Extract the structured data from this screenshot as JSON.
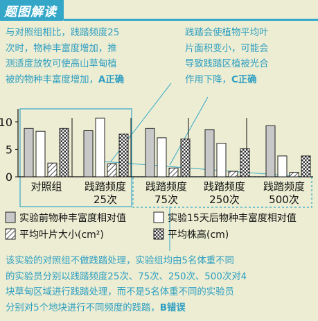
{
  "header": {
    "title": "题图解读"
  },
  "notes": {
    "left_lines": [
      "与对照组相比，践踏频度25",
      "次时，物种丰富度增加，推",
      "测适度放牧可使高山草甸植"
    ],
    "left_last": "被的物种丰富度增加，",
    "left_verdict": "A正确",
    "right_lines": [
      "践踏会使植物平均叶",
      "片面积变小，可能会",
      "导致践踏区植被光合"
    ],
    "right_last": "作用下降，",
    "right_verdict": "C正确",
    "bottom_lines": [
      "该实验的对照组不做践踏处理，实验组均由5名体重不同",
      "的实验员分别以践踏频度25次、75次、250次、500次对4",
      "块草甸区域进行践踏处理，而不是5名体重不同的实验员"
    ],
    "bottom_last": "分别对5个地块进行不同频度的践踏，",
    "bottom_verdict": "B错误"
  },
  "chart_data": {
    "type": "bar",
    "ylim": [
      0,
      12
    ],
    "yticks": [
      "0",
      "5",
      "10"
    ],
    "groups": [
      {
        "line1": "对照组",
        "line2": ""
      },
      {
        "line1": "践踏频度",
        "line2": "25次"
      },
      {
        "line1": "践踏频度",
        "line2": "75次"
      },
      {
        "line1": "践踏频度",
        "line2": "250次"
      },
      {
        "line1": "践踏频度",
        "line2": "500次"
      }
    ],
    "series": [
      {
        "name": "实验前物种丰富度相对值",
        "values": [
          8.8,
          8.4,
          8.8,
          8.6,
          9.3
        ],
        "fill": "#c8c8c8"
      },
      {
        "name": "实验15天后物种丰富度相对值",
        "values": [
          8.3,
          10.7,
          7.1,
          6.1,
          3.8
        ],
        "fill": "#ffffff"
      },
      {
        "name": "平均叶片大小(cm²)",
        "values": [
          2.5,
          2.4,
          1.6,
          1.0,
          0.8
        ],
        "fill": "hatch"
      },
      {
        "name": "平均株高(cm)",
        "values": [
          8.8,
          7.8,
          6.9,
          5.1,
          3.8
        ],
        "fill": "check"
      }
    ],
    "accent": "#34a7c8",
    "bg": "#ecedd2"
  }
}
